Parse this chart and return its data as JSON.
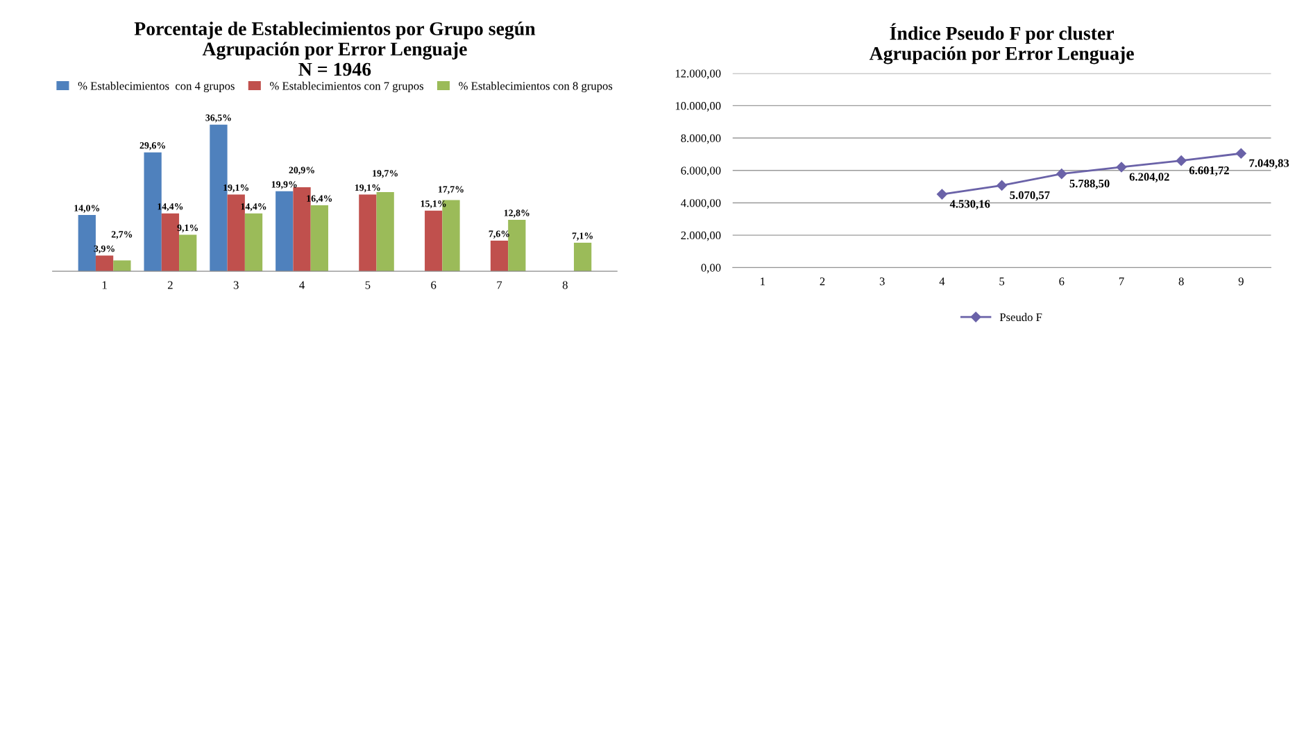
{
  "chart_data": [
    {
      "type": "bar",
      "title": "Porcentaje de Establecimientos por Grupo según\nAgrupación por Error Lenguaje\nN = 1946",
      "categories": [
        "1",
        "2",
        "3",
        "4",
        "5",
        "6",
        "7",
        "8"
      ],
      "series": [
        {
          "name": "% Establecimientos  con 4 grupos",
          "color": "#4f81bd",
          "values": [
            14.0,
            29.6,
            36.5,
            19.9,
            null,
            null,
            null,
            null
          ],
          "value_labels": [
            "14,0%",
            "29,6%",
            "36,5%",
            "19,9%",
            null,
            null,
            null,
            null
          ]
        },
        {
          "name": "% Establecimientos con 7 grupos",
          "color": "#c0504d",
          "values": [
            3.9,
            14.4,
            19.1,
            20.9,
            19.1,
            15.1,
            7.6,
            null
          ],
          "value_labels": [
            "3,9%",
            "14,4%",
            "19,1%",
            "20,9%",
            "19,1%",
            "15,1%",
            "7,6%",
            null
          ]
        },
        {
          "name": "% Establecimientos con 8 grupos",
          "color": "#9bbb59",
          "values": [
            2.7,
            9.1,
            14.4,
            16.4,
            19.7,
            17.7,
            12.8,
            7.1
          ],
          "value_labels": [
            "2,7%",
            "9,1%",
            "14,4%",
            "16,4%",
            "19,7%",
            "17,7%",
            "12,8%",
            "7,1%"
          ]
        }
      ],
      "legend": "top",
      "grid": false,
      "tick_labels": "x"
    },
    {
      "type": "line",
      "title": "Índice Pseudo F por cluster\nAgrupación por Error Lenguaje",
      "categories": [
        "1",
        "2",
        "3",
        "4",
        "5",
        "6",
        "7",
        "8",
        "9"
      ],
      "series": [
        {
          "name": "Pseudo F",
          "color": "#6a62a8",
          "values": [
            null,
            null,
            null,
            4530.16,
            5070.57,
            5788.5,
            6204.02,
            6601.72,
            7049.83
          ],
          "value_labels": [
            null,
            null,
            null,
            "4.530,16",
            "5.070,57",
            "5.788,50",
            "6.204,02",
            "6.601,72",
            "7.049,83"
          ]
        }
      ],
      "ylim": [
        0,
        12000
      ],
      "yticks": [
        {
          "value": 0,
          "label": "0,00"
        },
        {
          "value": 2000,
          "label": "2.000,00"
        },
        {
          "value": 4000,
          "label": "4.000,00"
        },
        {
          "value": 6000,
          "label": "6.000,00"
        },
        {
          "value": 8000,
          "label": "8.000,00"
        },
        {
          "value": 10000,
          "label": "10.000,00"
        },
        {
          "value": 12000,
          "label": "12.000,00"
        }
      ],
      "grid": "y",
      "legend": "bottom",
      "marker": "diamond",
      "line_style": "solid"
    }
  ]
}
